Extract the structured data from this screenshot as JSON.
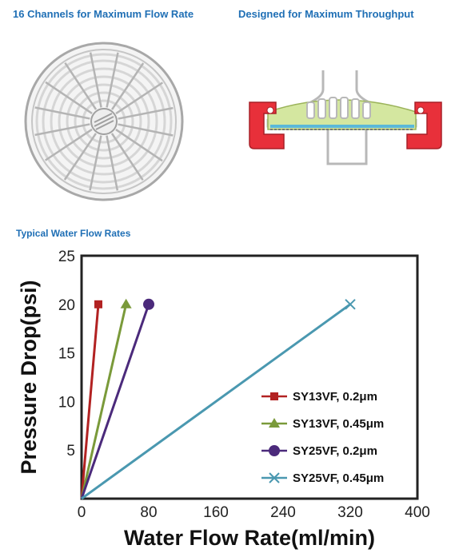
{
  "headings": {
    "left": "16 Channels for Maximum Flow Rate",
    "right": "Designed for Maximum Throughput",
    "chart": "Typical Water Flow Rates"
  },
  "chart_data": {
    "type": "line",
    "title": "",
    "xlabel": "Water Flow Rate(ml/min)",
    "ylabel": "Pressure Drop(psi)",
    "xlim": [
      0,
      400
    ],
    "ylim": [
      0,
      25
    ],
    "xticks": [
      0,
      80,
      160,
      240,
      320,
      400
    ],
    "yticks": [
      5,
      10,
      15,
      20,
      25
    ],
    "grid": false,
    "legend_position": "bottom-right",
    "series": [
      {
        "name": "SY13VF, 0.2μm",
        "color": "#b22222",
        "marker": "square",
        "x": [
          0,
          20
        ],
        "y": [
          0,
          20
        ]
      },
      {
        "name": "SY13VF, 0.45μm",
        "color": "#7a9a3a",
        "marker": "triangle",
        "x": [
          0,
          53
        ],
        "y": [
          0,
          20
        ]
      },
      {
        "name": "SY25VF, 0.2μm",
        "color": "#4b2a7b",
        "marker": "circle",
        "x": [
          0,
          80
        ],
        "y": [
          0,
          20
        ]
      },
      {
        "name": "SY25VF, 0.45μm",
        "color": "#4a98b0",
        "marker": "x",
        "x": [
          0,
          320
        ],
        "y": [
          0,
          20
        ]
      }
    ]
  }
}
